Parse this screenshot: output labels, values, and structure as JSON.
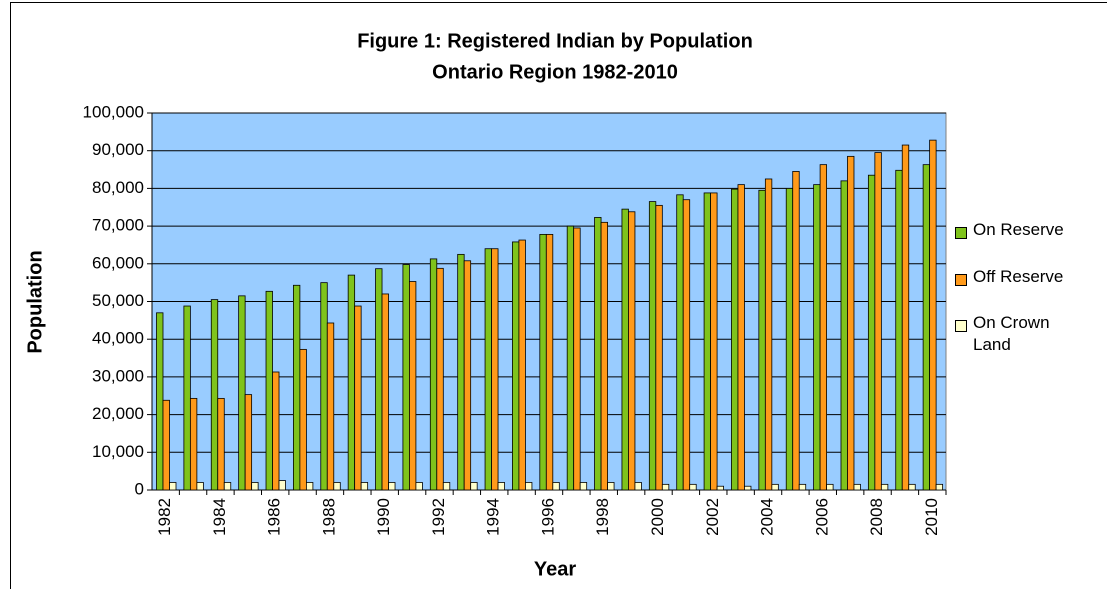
{
  "chart_data": {
    "type": "bar",
    "title": "Figure 1: Registered Indian by Population",
    "subtitle": "Ontario Region 1982-2010",
    "x_label": "Year",
    "y_label": "Population",
    "categories": [
      "1982",
      null,
      "1984",
      null,
      "1986",
      null,
      "1988",
      null,
      "1990",
      null,
      "1992",
      null,
      "1994",
      null,
      "1996",
      null,
      "1998",
      null,
      "2000",
      null,
      "2002",
      null,
      "2004",
      null,
      "2006",
      null,
      "2008",
      null,
      "2010"
    ],
    "series": [
      {
        "name": "On Reserve",
        "color": "#7fc31c",
        "values": [
          47000,
          48800,
          50500,
          51500,
          52700,
          54300,
          55000,
          57000,
          58700,
          59800,
          61300,
          62500,
          64000,
          65800,
          67800,
          70000,
          72300,
          74500,
          76500,
          78300,
          78800,
          79800,
          79500,
          80000,
          81000,
          82000,
          83500,
          84800,
          86300
        ]
      },
      {
        "name": "Off Reserve",
        "color": "#ff9a1a",
        "values": [
          23800,
          24300,
          24300,
          25300,
          31300,
          37300,
          44300,
          48800,
          52000,
          55300,
          58800,
          60800,
          64000,
          66300,
          67800,
          69500,
          71000,
          73800,
          75500,
          77000,
          78800,
          81000,
          82500,
          84500,
          86300,
          88500,
          89500,
          91500,
          92800
        ]
      },
      {
        "name": "On Crown Land",
        "color": "#ffffcc",
        "values": [
          2000,
          2000,
          2000,
          2000,
          2500,
          2000,
          2000,
          2000,
          2000,
          2000,
          2000,
          2000,
          2000,
          2000,
          2000,
          2000,
          2000,
          2000,
          1500,
          1500,
          1000,
          1000,
          1500,
          1500,
          1500,
          1500,
          1500,
          1500,
          1500
        ]
      }
    ],
    "ylim": [
      0,
      100000
    ],
    "yticks": [
      0,
      {
        "value": 10000,
        "label": "10,000"
      },
      {
        "value": 20000,
        "label": "20,000"
      },
      {
        "value": 30000,
        "label": "30,000"
      },
      {
        "value": 40000,
        "label": "40,000"
      },
      {
        "value": 50000,
        "label": "50,000"
      },
      {
        "value": 60000,
        "label": "60,000"
      },
      {
        "value": 70000,
        "label": "70,000"
      },
      {
        "value": 80000,
        "label": "80,000"
      },
      {
        "value": 90000,
        "label": "90,000"
      },
      {
        "value": 100000,
        "label": "100,000"
      }
    ],
    "grid": true,
    "legend": "right",
    "plot_background": "#99ccff"
  }
}
